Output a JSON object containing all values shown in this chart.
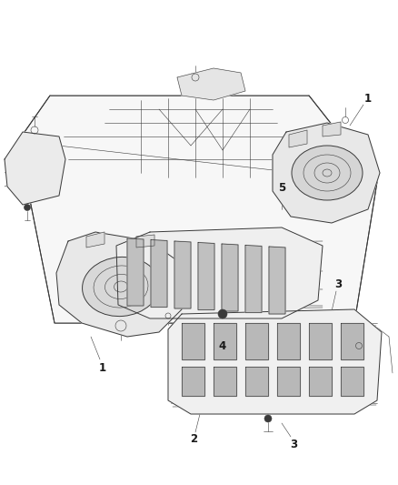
{
  "background_color": "#ffffff",
  "line_color": "#3a3a3a",
  "label_color": "#1a1a1a",
  "figsize": [
    4.38,
    5.33
  ],
  "dpi": 100,
  "lw_main": 0.7,
  "lw_thin": 0.4,
  "lw_bold": 1.0
}
